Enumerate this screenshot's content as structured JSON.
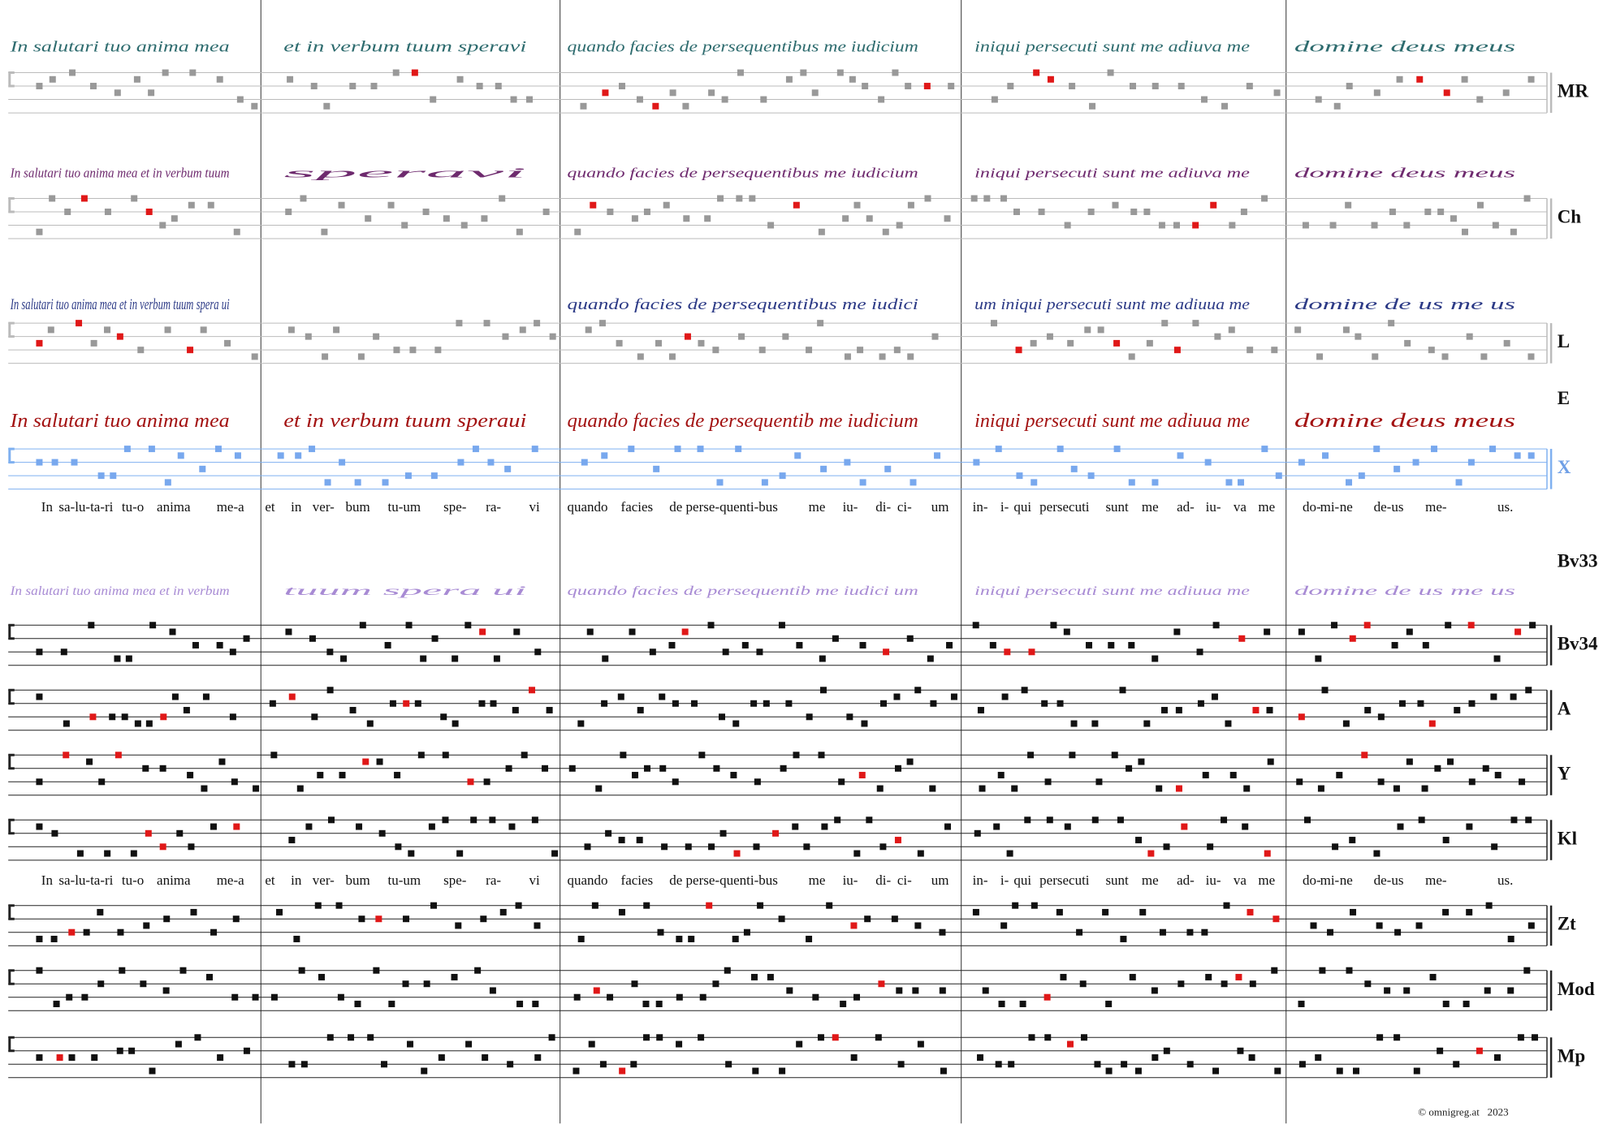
{
  "staves": [
    {
      "siglum": "MR",
      "script": [
        "In salutari tuo anima mea",
        "et in verbum tuum speravi",
        "quando facies de persequentibus me iudicium",
        "iniqui persecuti sunt me adiuva me",
        "domine deus meus"
      ]
    },
    {
      "siglum": "Ch",
      "script": [
        "In salutari tuo anima mea et in verbum tuum",
        "speravi",
        "quando facies de persequentibus me iudicium",
        "iniqui persecuti sunt me adiuva me",
        "domine deus meus"
      ]
    },
    {
      "siglum": "L",
      "script": [
        "In salutari tuo anima mea et in verbum tuum spera ui",
        "",
        "quando facies de persequentibus me iudici",
        "um iniqui persecuti sunt me adiuua me",
        "domine de us me us"
      ]
    },
    {
      "siglum": "E",
      "script": [
        "In salutari tuo anima mea",
        "et in verbum tuum speraui",
        "quando facies de persequentib me iudicium",
        "iniqui persecuti sunt me adiuua me",
        "domine deus meus"
      ]
    },
    {
      "siglum": "X"
    },
    {
      "siglum": "Bv33",
      "script": [
        "In salutari tuo anima mea et in verbum",
        "tuum spera ui",
        "quando facies de persequentib me iudici um",
        "iniqui persecuti sunt me adiuua me",
        "domine de us me us"
      ]
    },
    {
      "siglum": "Bv34"
    },
    {
      "siglum": "A"
    },
    {
      "siglum": "Y"
    },
    {
      "siglum": "Kl"
    },
    {
      "siglum": "Zt"
    },
    {
      "siglum": "Mod"
    },
    {
      "siglum": "Mp"
    }
  ],
  "lyrics": [
    "In",
    "sa-lu-ta-ri",
    "tu-o",
    "anima",
    "me-a",
    "et",
    "in",
    "ver-",
    "bum",
    "tu-um",
    "spe-",
    "ra-",
    "vi",
    "quando",
    "facies",
    "de",
    "perse-quenti-bus",
    "me",
    "iu-",
    "di-",
    "ci-",
    "um",
    "in-",
    "i-",
    "qui",
    "persecuti",
    "sunt",
    "me",
    "ad-",
    "iu-",
    "va",
    "me",
    "do-",
    "mi-",
    "ne",
    "de-us",
    "me-",
    "us."
  ],
  "footer": "© omnigreg.at   2023"
}
